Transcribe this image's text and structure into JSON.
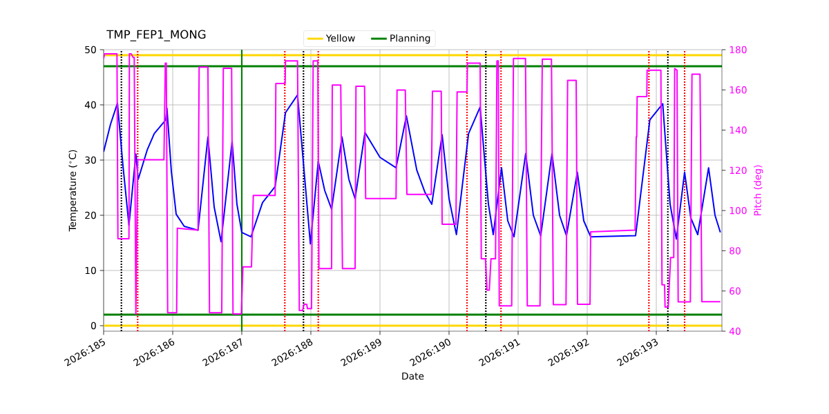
{
  "chart_data": {
    "type": "line",
    "title": "TMP_FEP1_MONG",
    "xlabel": "Date",
    "ylabel": "Temperature ($^{∘}$C)",
    "y2label": "Pitch (deg)",
    "xlim": [
      "2026-07-04",
      "2026-07-12T22:48"
    ],
    "ylim": [
      -1,
      50
    ],
    "y2lim": [
      40,
      180
    ],
    "xticks": [
      {
        "value": "2026-07-04",
        "label": "2026:185"
      },
      {
        "value": "2026-07-05",
        "label": "2026:186"
      },
      {
        "value": "2026-07-06",
        "label": "2026:187"
      },
      {
        "value": "2026-07-07",
        "label": "2026:188"
      },
      {
        "value": "2026-07-08",
        "label": "2026:189"
      },
      {
        "value": "2026-07-09",
        "label": "2026:190"
      },
      {
        "value": "2026-07-10",
        "label": "2026:191"
      },
      {
        "value": "2026-07-11",
        "label": "2026:192"
      },
      {
        "value": "2026-07-12",
        "label": "2026:193"
      }
    ],
    "yticks": [
      0,
      10,
      20,
      30,
      40,
      50
    ],
    "y2ticks": [
      40,
      60,
      80,
      100,
      120,
      140,
      160,
      180
    ],
    "grid": true,
    "legend": "top",
    "series": [
      {
        "color": "#0000ff",
        "x": [
          "2026-07-04T00:00",
          "2026-07-04T02:24",
          "2026-07-04T04:48",
          "2026-07-04T06:43",
          "2026-07-04T08:48",
          "2026-07-04T11:12",
          "2026-07-04T12:00",
          "2026-07-04T15:11",
          "2026-07-04T17:35",
          "2026-07-04T21:36",
          "2026-07-04T22:00",
          "2026-07-04T23:31",
          "2026-07-05T01:12",
          "2026-07-05T04:00",
          "2026-07-05T08:48",
          "2026-07-05T12:14",
          "2026-07-05T14:24",
          "2026-07-05T16:48",
          "2026-07-05T20:38",
          "2026-07-05T22:19",
          "2026-07-06T00:00",
          "2026-07-06T03:11",
          "2026-07-06T07:12",
          "2026-07-06T11:35",
          "2026-07-06T15:11",
          "2026-07-06T19:22",
          "2026-07-06T23:50",
          "2026-07-07T02:34",
          "2026-07-07T04:48",
          "2026-07-07T07:12",
          "2026-07-07T10:48",
          "2026-07-07T13:12",
          "2026-07-07T15:22",
          "2026-07-07T18:47",
          "2026-07-08T00:00",
          "2026-07-08T05:35",
          "2026-07-08T09:11",
          "2026-07-08T12:47",
          "2026-07-08T15:36",
          "2026-07-08T18:00",
          "2026-07-08T21:36",
          "2026-07-09T00:00",
          "2026-07-09T02:34",
          "2026-07-09T06:47",
          "2026-07-09T10:48",
          "2026-07-09T13:41",
          "2026-07-09T15:22",
          "2026-07-09T18:14",
          "2026-07-09T20:24",
          "2026-07-09T22:34",
          "2026-07-10T02:38",
          "2026-07-10T05:17",
          "2026-07-10T07:51",
          "2026-07-10T11:46",
          "2026-07-10T14:24",
          "2026-07-10T16:48",
          "2026-07-10T20:34",
          "2026-07-10T22:48",
          "2026-07-11T01:12",
          "2026-07-11T16:48",
          "2026-07-11T21:46",
          "2026-07-12T02:14",
          "2026-07-12T04:48",
          "2026-07-12T06:58",
          "2026-07-12T09:50",
          "2026-07-12T12:00",
          "2026-07-12T14:24",
          "2026-07-12T18:10",
          "2026-07-12T20:24",
          "2026-07-12T22:15"
        ],
        "values": [
          31.5,
          36.5,
          40.3,
          29,
          18.2,
          31.1,
          26.5,
          31.9,
          34.8,
          37.3,
          39.4,
          28,
          20.2,
          18,
          17.3,
          34.2,
          21.5,
          15.2,
          33.4,
          22,
          16.9,
          16.1,
          22.3,
          25.2,
          38.6,
          41.8,
          14.8,
          29.8,
          24.5,
          21.1,
          34.2,
          26.5,
          23,
          35,
          30.5,
          28.6,
          38,
          28.2,
          24.2,
          22,
          34.6,
          23,
          16.5,
          34.8,
          39.6,
          22,
          16.5,
          28.6,
          19,
          16.1,
          31.2,
          20,
          16.3,
          31.2,
          20,
          16.3,
          27.8,
          19,
          16.1,
          16.3,
          37.3,
          40.2,
          22,
          15.7,
          27.8,
          19.5,
          16.5,
          28.6,
          20,
          16.9
        ]
      },
      {
        "color": "#ff00ff",
        "axis": "y2",
        "x": [
          "2026-07-04T00:00",
          "2026-07-04T00:19",
          "2026-07-04T04:38",
          "2026-07-04T04:58",
          "2026-07-04T08:48",
          "2026-07-04T08:57",
          "2026-07-04T09:36",
          "2026-07-04T10:15",
          "2026-07-04T10:38",
          "2026-07-04T11:12",
          "2026-07-04T11:50",
          "2026-07-04T20:57",
          "2026-07-04T21:26",
          "2026-07-04T21:46",
          "2026-07-04T22:15",
          "2026-07-05T01:22",
          "2026-07-05T01:36",
          "2026-07-05T08:48",
          "2026-07-05T09:11",
          "2026-07-05T12:14",
          "2026-07-05T12:47",
          "2026-07-05T17:02",
          "2026-07-05T17:35",
          "2026-07-05T20:28",
          "2026-07-05T20:57",
          "2026-07-05T23:50",
          "2026-07-06T00:24",
          "2026-07-06T03:22",
          "2026-07-06T04:00",
          "2026-07-06T11:35",
          "2026-07-06T11:50",
          "2026-07-06T15:03",
          "2026-07-06T15:11",
          "2026-07-06T19:22",
          "2026-07-06T19:59",
          "2026-07-06T21:07",
          "2026-07-06T21:36",
          "2026-07-06T22:34",
          "2026-07-06T22:48",
          "2026-07-07T00:14",
          "2026-07-07T00:48",
          "2026-07-07T02:24",
          "2026-07-07T02:48",
          "2026-07-07T07:12",
          "2026-07-07T07:26",
          "2026-07-07T10:23",
          "2026-07-07T10:58",
          "2026-07-07T15:22",
          "2026-07-07T15:40",
          "2026-07-07T18:39",
          "2026-07-07T19:02",
          "2026-07-08T05:35",
          "2026-07-08T05:56",
          "2026-07-08T08:48",
          "2026-07-08T09:22",
          "2026-07-08T17:50",
          "2026-07-08T18:14",
          "2026-07-08T21:17",
          "2026-07-08T21:36",
          "2026-07-09T02:24",
          "2026-07-09T02:48",
          "2026-07-09T06:14",
          "2026-07-09T06:24",
          "2026-07-09T10:48",
          "2026-07-09T11:12",
          "2026-07-09T12:39",
          "2026-07-09T13:12",
          "2026-07-09T13:59",
          "2026-07-09T14:34",
          "2026-07-09T16:09",
          "2026-07-09T16:38",
          "2026-07-09T17:07",
          "2026-07-09T17:27",
          "2026-07-09T21:46",
          "2026-07-09T22:23",
          "2026-07-10T02:34",
          "2026-07-10T03:11",
          "2026-07-10T07:36",
          "2026-07-10T08:24",
          "2026-07-10T11:35",
          "2026-07-10T12:14",
          "2026-07-10T16:38",
          "2026-07-10T17:12",
          "2026-07-10T20:10",
          "2026-07-10T20:38",
          "2026-07-11T00:58",
          "2026-07-11T01:12",
          "2026-07-11T16:38",
          "2026-07-11T17:02",
          "2026-07-11T17:12",
          "2026-07-11T17:21",
          "2026-07-11T20:43",
          "2026-07-11T20:48",
          "2026-07-12T01:36",
          "2026-07-12T01:59",
          "2026-07-12T02:53",
          "2026-07-12T03:03",
          "2026-07-12T04:09",
          "2026-07-12T04:58",
          "2026-07-12T06:04",
          "2026-07-12T06:24",
          "2026-07-12T07:12",
          "2026-07-12T07:36",
          "2026-07-12T11:50",
          "2026-07-12T12:24",
          "2026-07-12T15:11",
          "2026-07-12T15:50",
          "2026-07-12T22:15"
        ],
        "values": [
          175.6,
          177.9,
          177.9,
          86,
          86,
          177.9,
          177.9,
          176.1,
          176.1,
          48.6,
          125.3,
          125.3,
          173.3,
          173.3,
          49.2,
          49.2,
          91.2,
          90.3,
          171.3,
          171.3,
          49.2,
          49.2,
          170.7,
          170.7,
          48.6,
          48.6,
          72,
          72,
          107.5,
          107.5,
          163.2,
          163.2,
          174.4,
          174.4,
          50.3,
          50.3,
          53.4,
          53.4,
          51.2,
          51.2,
          174.4,
          174.4,
          71.1,
          71.1,
          162.4,
          162.4,
          71.1,
          71.1,
          161.8,
          161.8,
          106,
          106,
          159.9,
          159.9,
          108,
          108,
          159.3,
          159.3,
          93.2,
          93.2,
          159,
          159,
          173.3,
          173.3,
          76,
          76,
          60.4,
          60.4,
          76,
          76,
          174.4,
          174.4,
          52.6,
          52.6,
          175.6,
          175.6,
          52.6,
          52.6,
          175.3,
          175.3,
          53.2,
          53.2,
          164.7,
          164.7,
          53.4,
          53.4,
          89.4,
          90.3,
          136.7,
          136.7,
          156.7,
          156.7,
          169.8,
          169.8,
          63.1,
          63.1,
          52,
          52,
          76.6,
          76.6,
          170.6,
          169.8,
          54.6,
          54.6,
          167.8,
          167.8,
          54.7,
          54.7
        ]
      }
    ],
    "ref_lines": [
      {
        "axis": "y",
        "value": 0,
        "label": "Yellow",
        "color": "#ffd700",
        "line_style": "solid"
      },
      {
        "axis": "y",
        "value": 49,
        "color": "#ffd700",
        "line_style": "solid"
      },
      {
        "axis": "y",
        "value": 47,
        "label": "Planning",
        "color": "#008000",
        "line_style": "solid"
      },
      {
        "axis": "y",
        "value": 2,
        "color": "#008000",
        "line_style": "solid"
      },
      {
        "axis": "x",
        "value": "2026-07-06",
        "color": "#008000",
        "line_style": "solid"
      },
      {
        "axis": "x",
        "value": "2026-07-04T06:10",
        "color": "#000000",
        "line_style": "dotted"
      },
      {
        "axis": "x",
        "value": "2026-07-06T21:26",
        "color": "#000000",
        "line_style": "dotted"
      },
      {
        "axis": "x",
        "value": "2026-07-09T12:47",
        "color": "#000000",
        "line_style": "dotted"
      },
      {
        "axis": "x",
        "value": "2026-07-12T04:00",
        "color": "#000000",
        "line_style": "dotted"
      },
      {
        "axis": "x",
        "value": "2026-07-04T11:50",
        "color": "#ff0000",
        "line_style": "dotted"
      },
      {
        "axis": "x",
        "value": "2026-07-06T14:57",
        "color": "#ff0000",
        "line_style": "dotted"
      },
      {
        "axis": "x",
        "value": "2026-07-07T02:34",
        "color": "#ff0000",
        "line_style": "dotted"
      },
      {
        "axis": "x",
        "value": "2026-07-09T06:14",
        "color": "#ff0000",
        "line_style": "dotted"
      },
      {
        "axis": "x",
        "value": "2026-07-09T18:04",
        "color": "#ff0000",
        "line_style": "dotted"
      },
      {
        "axis": "x",
        "value": "2026-07-11T21:26",
        "color": "#ff0000",
        "line_style": "dotted"
      },
      {
        "axis": "x",
        "value": "2026-07-12T09:50",
        "color": "#ff0000",
        "line_style": "dotted"
      }
    ]
  }
}
